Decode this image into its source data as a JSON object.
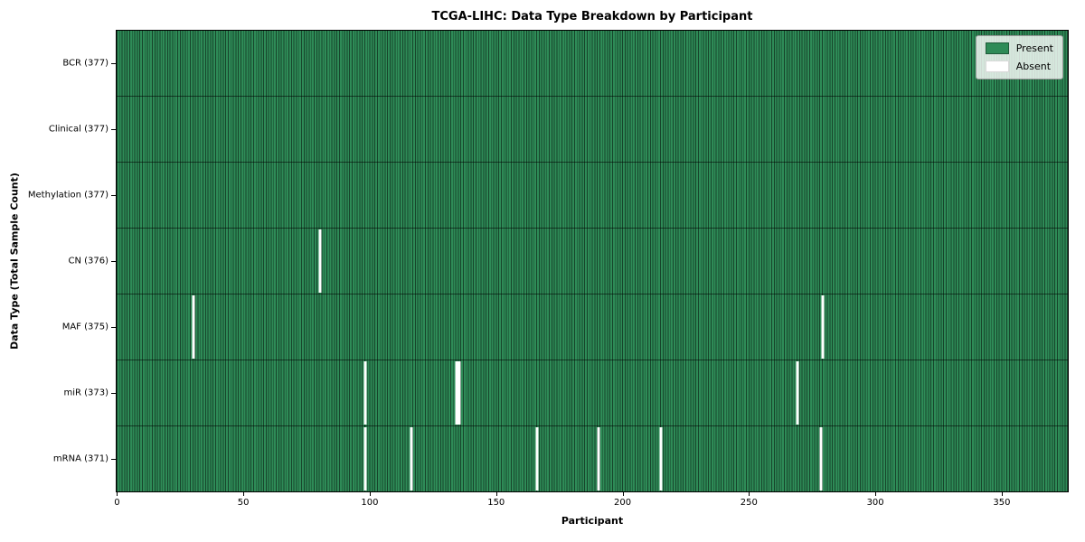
{
  "colors": {
    "present": "#2e8b57",
    "absent": "#ffffff",
    "bar_edge": "rgba(0,0,0,0.5)",
    "row_separator": "rgba(0,0,0,0.55)",
    "legend_border": "#999999"
  },
  "chart_data": {
    "type": "heatmap",
    "title": "TCGA-LIHC: Data Type Breakdown by Participant",
    "xlabel": "Participant",
    "ylabel": "Data Type (Total Sample Count)",
    "x_ticks": [
      0,
      50,
      100,
      150,
      200,
      250,
      300,
      350
    ],
    "x_range": [
      -0.5,
      376.5
    ],
    "n_participants": 377,
    "grid": false,
    "legend": [
      "Present",
      "Absent"
    ],
    "legend_position": "upper right",
    "rows": [
      {
        "label": "BCR (377)",
        "data_type": "BCR",
        "present_count": 377,
        "absent_participants": []
      },
      {
        "label": "Clinical (377)",
        "data_type": "Clinical",
        "present_count": 377,
        "absent_participants": []
      },
      {
        "label": "Methylation (377)",
        "data_type": "Methylation",
        "present_count": 377,
        "absent_participants": []
      },
      {
        "label": "CN (376)",
        "data_type": "CN",
        "present_count": 376,
        "absent_participants": [
          80
        ]
      },
      {
        "label": "MAF (375)",
        "data_type": "MAF",
        "present_count": 375,
        "absent_participants": [
          30,
          279
        ]
      },
      {
        "label": "miR (373)",
        "data_type": "miR",
        "present_count": 373,
        "absent_participants": [
          98,
          134,
          135,
          269
        ]
      },
      {
        "label": "mRNA (371)",
        "data_type": "mRNA",
        "present_count": 371,
        "absent_participants": [
          98,
          116,
          166,
          190,
          215,
          278
        ]
      }
    ]
  }
}
